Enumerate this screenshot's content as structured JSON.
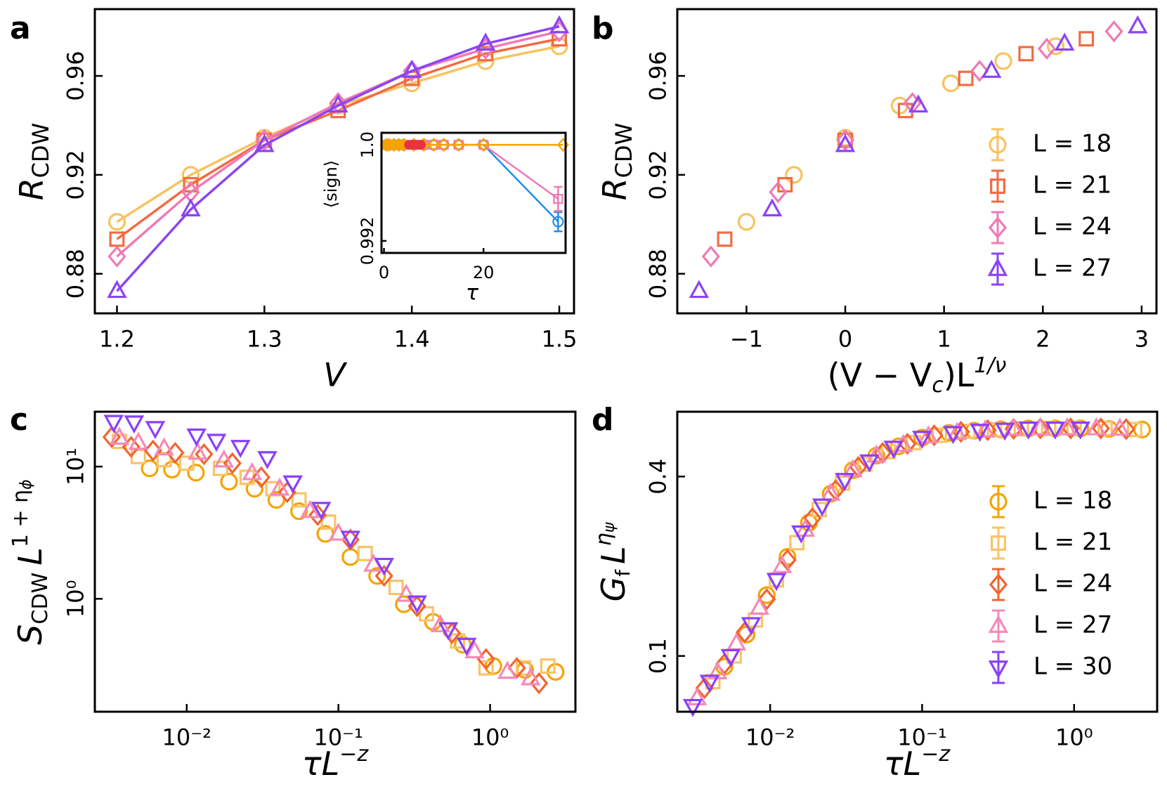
{
  "chart_data": [
    {
      "type": "line",
      "label": "a",
      "xlabel": "V",
      "ylabel": [
        "R",
        "CDW"
      ],
      "xlim": [
        1.185,
        1.51
      ],
      "ylim": [
        0.864,
        0.987
      ],
      "xticks": [
        1.2,
        1.3,
        1.4,
        1.5
      ],
      "yticks": [
        0.88,
        0.92,
        0.96
      ],
      "series": [
        {
          "color": "#f7c35f",
          "marker": "circle",
          "x": [
            1.2,
            1.25,
            1.3,
            1.35,
            1.4,
            1.45,
            1.5
          ],
          "values": [
            0.901,
            0.92,
            0.935,
            0.948,
            0.957,
            0.966,
            0.972
          ]
        },
        {
          "color": "#f26b43",
          "marker": "square",
          "x": [
            1.2,
            1.25,
            1.3,
            1.35,
            1.4,
            1.45,
            1.5
          ],
          "values": [
            0.894,
            0.916,
            0.934,
            0.946,
            0.959,
            0.969,
            0.975
          ]
        },
        {
          "color": "#f07ab5",
          "marker": "diamond",
          "x": [
            1.2,
            1.25,
            1.3,
            1.35,
            1.4,
            1.45,
            1.5
          ],
          "values": [
            0.887,
            0.913,
            0.934,
            0.949,
            0.962,
            0.971,
            0.978
          ]
        },
        {
          "color": "#8b45f2",
          "marker": "triangle-up",
          "x": [
            1.2,
            1.25,
            1.3,
            1.35,
            1.4,
            1.45,
            1.5
          ],
          "values": [
            0.873,
            0.906,
            0.932,
            0.948,
            0.962,
            0.973,
            0.98
          ]
        }
      ]
    },
    {
      "type": "line",
      "xlabel": "τ",
      "ylabel": "⟨sign⟩",
      "xlim": [
        -0.5,
        36.5
      ],
      "ylim": [
        0.991,
        1.001
      ],
      "xticks": [
        0,
        20
      ],
      "yticks": [
        0.992,
        {
          "value": 1,
          "label": "1.0"
        }
      ],
      "series": [
        {
          "color": "#1f8fe8",
          "marker": "circle",
          "x": [
            0.5,
            1,
            2,
            3,
            4,
            6,
            8,
            10,
            12,
            15,
            20,
            35
          ],
          "values": [
            1,
            1,
            1,
            1,
            1,
            1,
            1,
            1,
            1,
            1,
            1,
            0.9936
          ],
          "errors": [
            0,
            0,
            0,
            0,
            0,
            0,
            0,
            0,
            0,
            0,
            0,
            0.0008
          ]
        },
        {
          "color": "#f07ab5",
          "marker": "square",
          "x": [
            0.5,
            1,
            2,
            3,
            4,
            6,
            8,
            10,
            12,
            15,
            20,
            35
          ],
          "values": [
            1,
            1,
            1,
            1,
            1,
            1,
            1,
            1,
            1,
            1,
            1,
            0.9955
          ],
          "errors": [
            0,
            0,
            0,
            0,
            0,
            0,
            0,
            0,
            0,
            0,
            0,
            0.001
          ]
        },
        {
          "color": "#f5a300",
          "marker": "diamond",
          "x": [
            0.5,
            1,
            2,
            3,
            4,
            6,
            8,
            10,
            12,
            15,
            20,
            36
          ],
          "values": [
            1,
            1,
            1,
            1,
            1,
            1,
            1,
            1,
            1,
            1,
            1,
            1
          ]
        },
        {
          "color": "#f5a300",
          "marker": "dot",
          "x": [
            0.2,
            0.6,
            1,
            1.4,
            1.8,
            2.2,
            2.6,
            3,
            3.4,
            3.8
          ],
          "values": [
            1,
            1,
            1,
            1,
            1,
            1,
            1,
            1,
            1,
            1
          ]
        },
        {
          "color": "#e8323c",
          "marker": "dot",
          "x": [
            5,
            5.5,
            6,
            6.5,
            7,
            7.5
          ],
          "values": [
            1,
            1,
            1,
            1,
            1,
            1
          ]
        }
      ]
    },
    {
      "type": "scatter",
      "label": "b",
      "xlabel": [
        "(V − V",
        "c",
        ")L",
        "1/ν"
      ],
      "ylabel": [
        "R",
        "CDW"
      ],
      "xlim": [
        -1.7,
        3.15
      ],
      "ylim": [
        0.864,
        0.987
      ],
      "xticks": [
        {
          "value": -1,
          "label": "−1"
        },
        0,
        1,
        2,
        3
      ],
      "yticks": [
        0.88,
        0.92,
        0.96
      ],
      "legend": "lower right",
      "series": [
        {
          "name": "L = 18",
          "color": "#f7c35f",
          "marker": "circle",
          "x": [
            -1.0,
            -0.52,
            0,
            0.55,
            1.07,
            1.6,
            2.13
          ],
          "values": [
            0.901,
            0.92,
            0.935,
            0.948,
            0.957,
            0.966,
            0.972
          ]
        },
        {
          "name": "L = 21",
          "color": "#f26b43",
          "marker": "square",
          "x": [
            -1.22,
            -0.61,
            0,
            0.61,
            1.22,
            1.83,
            2.44
          ],
          "values": [
            0.894,
            0.916,
            0.934,
            0.946,
            0.959,
            0.969,
            0.975
          ]
        },
        {
          "name": "L = 24",
          "color": "#f07ab5",
          "marker": "diamond",
          "x": [
            -1.36,
            -0.68,
            0,
            0.68,
            1.36,
            2.04,
            2.72
          ],
          "values": [
            0.887,
            0.913,
            0.934,
            0.949,
            0.962,
            0.971,
            0.978
          ]
        },
        {
          "name": "L = 27",
          "color": "#8b45f2",
          "marker": "triangle-up",
          "x": [
            -1.48,
            -0.74,
            0,
            0.74,
            1.48,
            2.22,
            2.96
          ],
          "values": [
            0.873,
            0.906,
            0.932,
            0.948,
            0.962,
            0.973,
            0.98
          ]
        }
      ]
    },
    {
      "type": "scatter",
      "label": "c",
      "xlabel": [
        "τL",
        "−z"
      ],
      "ylabel": [
        "S",
        "CDW",
        "L",
        "1 + η",
        "ϕ"
      ],
      "xscale": "log",
      "yscale": "log",
      "xlim": [
        0.00248,
        3.65
      ],
      "ylim": [
        0.14,
        26
      ],
      "xticks": [
        {
          "value": 0.01,
          "label": "10⁻²"
        },
        {
          "value": 0.1,
          "label": "10⁻¹"
        },
        {
          "value": 1,
          "label": "10⁰"
        }
      ],
      "yticks": [
        {
          "value": 1,
          "label": "10⁰"
        },
        {
          "value": 10,
          "label": "10¹"
        }
      ],
      "series": [
        {
          "color": "#f5a300",
          "marker": "circle",
          "x": [
            0.0057,
            0.008,
            0.0115,
            0.019,
            0.028,
            0.039,
            0.055,
            0.082,
            0.12,
            0.18,
            0.27,
            0.42,
            0.66,
            1.05,
            1.7,
            2.7
          ],
          "values": [
            9.7,
            9.5,
            9.0,
            7.7,
            6.8,
            5.6,
            4.6,
            3.1,
            2.07,
            1.49,
            0.91,
            0.67,
            0.45,
            0.31,
            0.29,
            0.28
          ]
        },
        {
          "color": "#f8c368",
          "marker": "square",
          "x": [
            0.0036,
            0.0048,
            0.0071,
            0.01,
            0.0167,
            0.025,
            0.037,
            0.055,
            0.086,
            0.15,
            0.24,
            0.38,
            0.61,
            0.94,
            1.66,
            2.4
          ],
          "values": [
            15.5,
            11.9,
            11.3,
            10.6,
            9.7,
            8.3,
            6.8,
            5.6,
            3.8,
            2.2,
            1.22,
            0.77,
            0.48,
            0.3,
            0.3,
            0.31
          ]
        },
        {
          "color": "#f26430",
          "marker": "diamond",
          "x": [
            0.0032,
            0.0043,
            0.006,
            0.0084,
            0.013,
            0.02,
            0.031,
            0.046,
            0.073,
            0.12,
            0.2,
            0.33,
            0.56,
            0.94,
            1.5,
            2.1
          ],
          "values": [
            16.7,
            14.1,
            13.2,
            12.7,
            12.4,
            10.6,
            8.3,
            6.4,
            4.3,
            2.8,
            1.49,
            0.88,
            0.55,
            0.35,
            0.3,
            0.23
          ]
        },
        {
          "color": "#f58ab9",
          "marker": "triangle-up",
          "x": [
            0.0036,
            0.0048,
            0.0071,
            0.0118,
            0.0176,
            0.027,
            0.041,
            0.065,
            0.1,
            0.17,
            0.28,
            0.47,
            0.79,
            1.3,
            1.85
          ],
          "values": [
            16.5,
            15.1,
            13.7,
            12.7,
            11.1,
            8.9,
            6.8,
            4.6,
            3.1,
            1.81,
            1.07,
            0.63,
            0.4,
            0.28,
            0.25
          ]
        },
        {
          "color": "#8a40fc",
          "marker": "triangle-down",
          "x": [
            0.0033,
            0.0045,
            0.0062,
            0.0116,
            0.0157,
            0.0226,
            0.034,
            0.05,
            0.077,
            0.12,
            0.2,
            0.33,
            0.53,
            0.7
          ],
          "values": [
            21.8,
            21.6,
            19.6,
            17.2,
            15.7,
            14.1,
            11.6,
            7.6,
            4.8,
            2.9,
            1.81,
            0.94,
            0.59,
            0.45
          ]
        }
      ]
    },
    {
      "type": "scatter",
      "label": "d",
      "xlabel": [
        "τL",
        "−z"
      ],
      "ylabel": [
        "G",
        "f",
        "L",
        "η",
        "ψ"
      ],
      "xscale": "log",
      "yscale": "log",
      "xlim": [
        0.00245,
        3.52
      ],
      "ylim": [
        0.065,
        0.66
      ],
      "xticks": [
        {
          "value": 0.01,
          "label": "10⁻²"
        },
        {
          "value": 0.1,
          "label": "10⁻¹"
        },
        {
          "value": 1,
          "label": "10⁰"
        }
      ],
      "yticks": [
        0.1,
        0.4
      ],
      "legend": "lower right",
      "series": [
        {
          "name": "L = 18",
          "color": "#f5a300",
          "marker": "circle",
          "x": [
            0.005,
            0.007,
            0.0095,
            0.013,
            0.018,
            0.025,
            0.035,
            0.05,
            0.07,
            0.1,
            0.15,
            0.22,
            0.33,
            0.5,
            0.75,
            1.1,
            1.7,
            2.8
          ],
          "values": [
            0.092,
            0.118,
            0.16,
            0.215,
            0.28,
            0.35,
            0.42,
            0.47,
            0.505,
            0.54,
            0.56,
            0.57,
            0.576,
            0.58,
            0.58,
            0.58,
            0.578,
            0.575
          ]
        },
        {
          "name": "L = 21",
          "color": "#f8c368",
          "marker": "square",
          "x": [
            0.0042,
            0.0058,
            0.008,
            0.011,
            0.015,
            0.021,
            0.03,
            0.042,
            0.06,
            0.088,
            0.13,
            0.2,
            0.3,
            0.45,
            0.68,
            1.0,
            1.6,
            2.5
          ],
          "values": [
            0.082,
            0.1,
            0.132,
            0.18,
            0.24,
            0.31,
            0.38,
            0.44,
            0.485,
            0.52,
            0.55,
            0.567,
            0.574,
            0.578,
            0.58,
            0.58,
            0.58,
            0.575
          ]
        },
        {
          "name": "L = 24",
          "color": "#f26430",
          "marker": "diamond",
          "x": [
            0.0037,
            0.005,
            0.0068,
            0.0095,
            0.013,
            0.019,
            0.027,
            0.038,
            0.055,
            0.08,
            0.12,
            0.18,
            0.27,
            0.4,
            0.6,
            0.95,
            1.5,
            2.2
          ],
          "values": [
            0.078,
            0.094,
            0.12,
            0.155,
            0.21,
            0.29,
            0.36,
            0.43,
            0.48,
            0.515,
            0.55,
            0.565,
            0.572,
            0.578,
            0.58,
            0.58,
            0.58,
            0.577
          ]
        },
        {
          "name": "L = 27",
          "color": "#f58ab9",
          "marker": "triangle-up",
          "x": [
            0.0033,
            0.0045,
            0.006,
            0.0085,
            0.012,
            0.017,
            0.025,
            0.035,
            0.05,
            0.075,
            0.11,
            0.17,
            0.26,
            0.4,
            0.6,
            0.9,
            1.4,
            2.0
          ],
          "values": [
            0.072,
            0.088,
            0.11,
            0.145,
            0.2,
            0.265,
            0.35,
            0.42,
            0.47,
            0.51,
            0.545,
            0.56,
            0.57,
            0.578,
            0.58,
            0.58,
            0.58,
            0.578
          ]
        },
        {
          "name": "L = 30",
          "color": "#8a40fc",
          "marker": "triangle-down",
          "x": [
            0.0031,
            0.004,
            0.0055,
            0.0075,
            0.011,
            0.016,
            0.022,
            0.031,
            0.045,
            0.065,
            0.1,
            0.16,
            0.24,
            0.35,
            0.5,
            0.75,
            1.1
          ],
          "values": [
            0.068,
            0.082,
            0.1,
            0.128,
            0.18,
            0.26,
            0.32,
            0.39,
            0.45,
            0.5,
            0.54,
            0.56,
            0.57,
            0.575,
            0.58,
            0.58,
            0.58
          ]
        }
      ]
    }
  ]
}
